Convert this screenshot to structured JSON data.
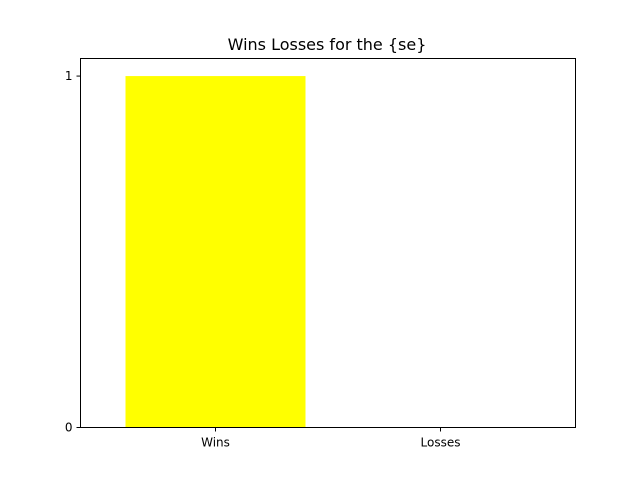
{
  "chart_data": {
    "type": "bar",
    "title": "Wins Losses for the {se}",
    "xlabel": "",
    "ylabel": "",
    "categories": [
      "Wins",
      "Losses"
    ],
    "values": [
      1,
      0
    ],
    "colors": [
      "#ffff00",
      "#ffff00"
    ],
    "ylim": [
      0,
      1.05
    ],
    "yticks": [
      0,
      1
    ],
    "ytick_labels": [
      "0",
      "1"
    ],
    "grid": false,
    "legend": "none"
  }
}
